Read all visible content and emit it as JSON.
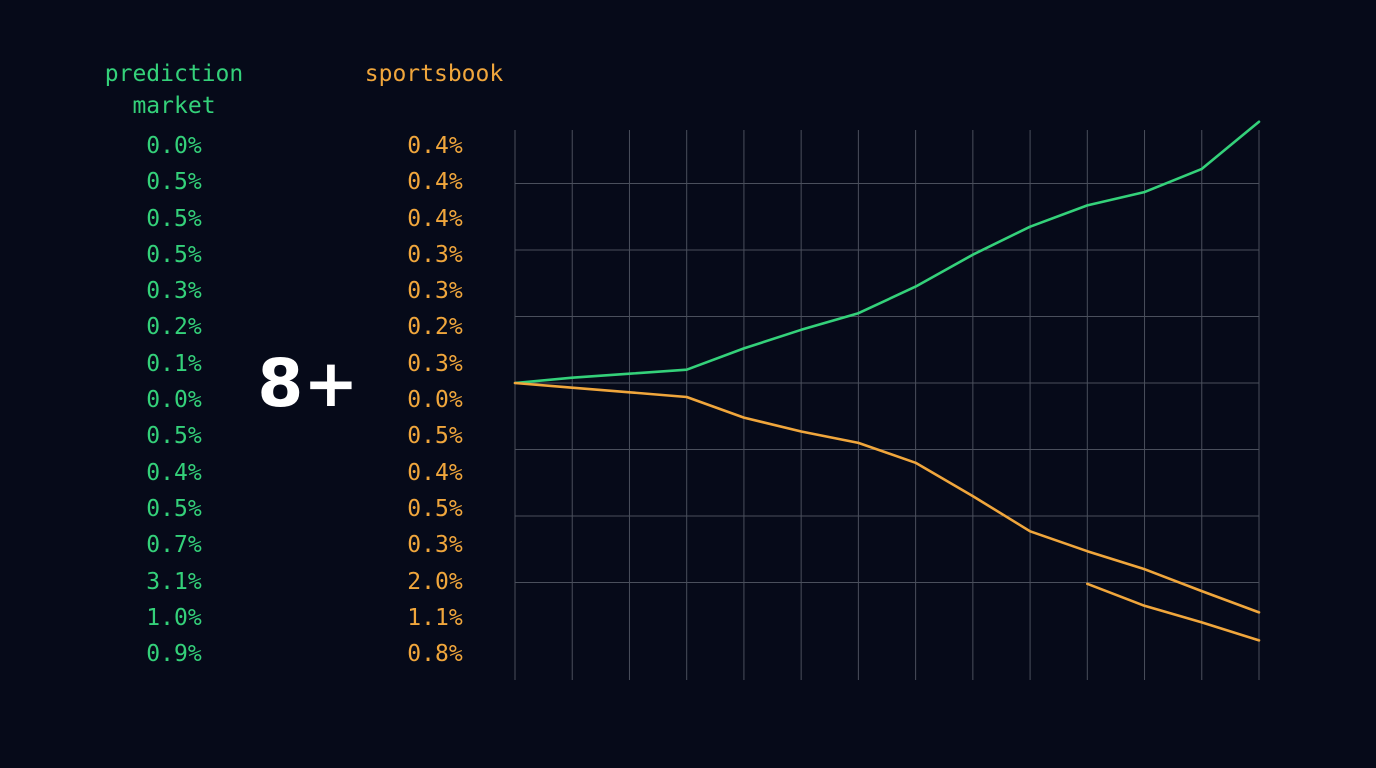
{
  "headers": {
    "prediction_market": "prediction\nmarket",
    "sportsbook": "sportsbook"
  },
  "columns": {
    "prediction_market": [
      "0.0%",
      "0.5%",
      "0.5%",
      "0.5%",
      "0.3%",
      "0.2%",
      "0.1%",
      "0.0%",
      "0.5%",
      "0.4%",
      "0.5%",
      "0.7%",
      "3.1%",
      "1.0%",
      "0.9%"
    ],
    "sportsbook": [
      "0.4%",
      "0.4%",
      "0.4%",
      "0.3%",
      "0.3%",
      "0.2%",
      "0.3%",
      "0.0%",
      "0.5%",
      "0.4%",
      "0.5%",
      "0.3%",
      "2.0%",
      "1.1%",
      "0.8%"
    ]
  },
  "big_label": "8+",
  "colors": {
    "prediction_market": "#34d17a",
    "sportsbook": "#f0a63c",
    "grid": "#4a4f5c",
    "background": "#060a19"
  },
  "chart_data": {
    "type": "line",
    "x": [
      0,
      1,
      2,
      3,
      4,
      5,
      6,
      7,
      8,
      9,
      10,
      11,
      12,
      13
    ],
    "xlim": [
      0,
      13
    ],
    "ylim": [
      -3.6,
      3.6
    ],
    "grid": true,
    "series": [
      {
        "color": "#34d17a",
        "x": [
          0,
          1,
          2,
          3,
          4,
          5,
          6,
          7,
          8,
          9,
          10,
          11,
          12,
          13
        ],
        "y": [
          0,
          0.08,
          0.14,
          0.2,
          0.52,
          0.8,
          1.05,
          1.45,
          1.93,
          2.35,
          2.67,
          2.87,
          3.22,
          3.93
        ]
      },
      {
        "color": "#f0a63c",
        "x": [
          0,
          1,
          2,
          3,
          4,
          5,
          6,
          7,
          8,
          9,
          10,
          11,
          12,
          13
        ],
        "y": [
          0,
          -0.07,
          -0.14,
          -0.21,
          -0.52,
          -0.73,
          -0.9,
          -1.2,
          -1.7,
          -2.23,
          -2.53,
          -2.8,
          -3.13,
          -3.45
        ]
      },
      {
        "color": "#f0a63c",
        "x": [
          10,
          11,
          12,
          13
        ],
        "y": [
          -3.02,
          -3.35,
          -3.6,
          -3.87
        ]
      }
    ]
  }
}
